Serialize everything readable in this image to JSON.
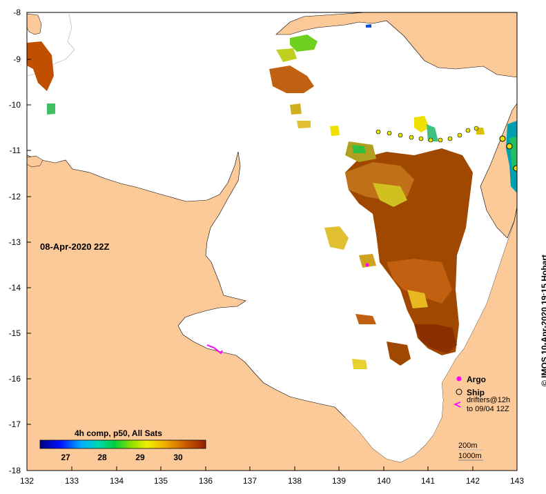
{
  "map": {
    "lat_ticks": [
      "-8",
      "-9",
      "-10",
      "-11",
      "-12",
      "-13",
      "-14",
      "-15",
      "-16",
      "-17",
      "-18"
    ],
    "lon_ticks": [
      "132",
      "133",
      "134",
      "135",
      "136",
      "137",
      "138",
      "139",
      "140",
      "141",
      "142",
      "143"
    ],
    "date_label": "08-Apr-2020 22Z",
    "colorbar_title": "4h comp, p50, All Sats",
    "colorbar_ticks": [
      "27",
      "28",
      "29",
      "30"
    ],
    "colorbar_range": [
      26.3,
      30.7
    ],
    "legend": {
      "argo": "Argo",
      "ship": "Ship",
      "drifters_line1": "drifters@12h",
      "drifters_line2": "to 09/04 12Z"
    },
    "contours": {
      "shallow": "200m",
      "deep": "1000m"
    },
    "credit": "© IMOS 10-Apr-2020 19:15 Hobart",
    "colors": {
      "land": "#fcc999",
      "water": "#ffffff",
      "argo": "#ff00ff",
      "ship": "#000000",
      "drifter_track": "#e8e000"
    }
  }
}
